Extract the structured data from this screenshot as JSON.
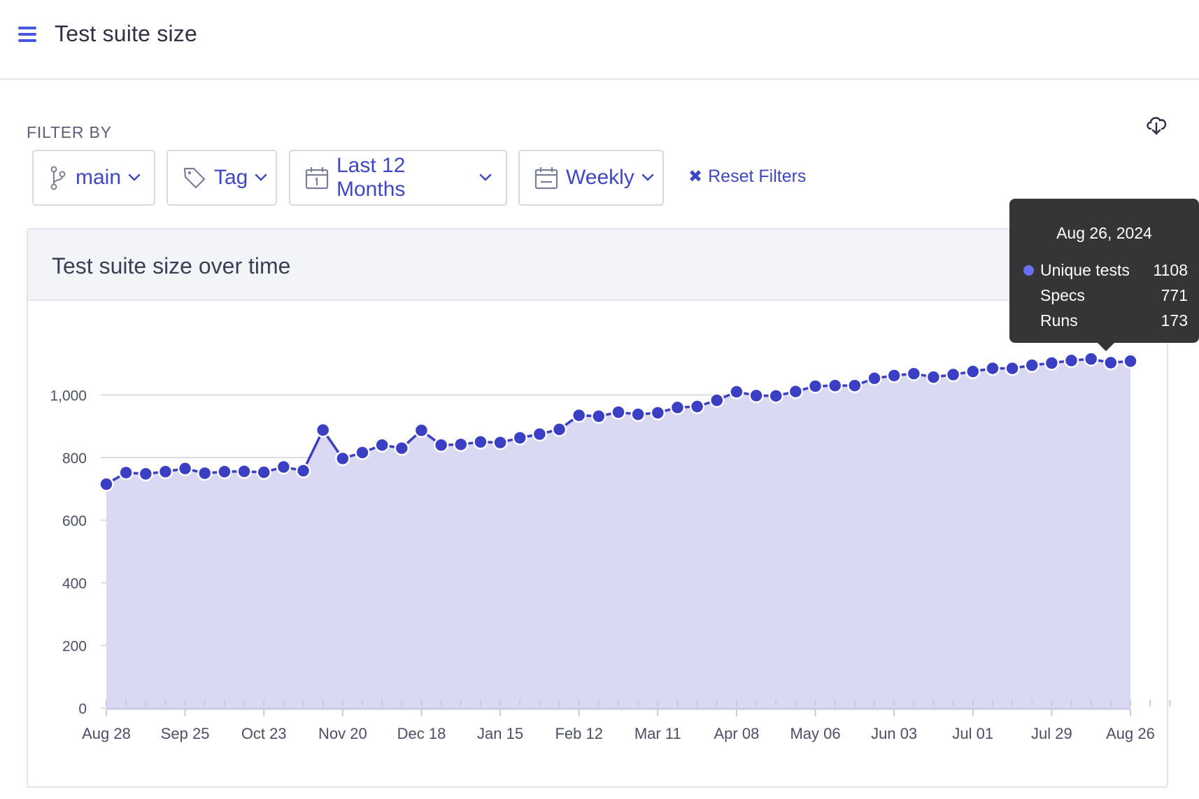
{
  "header": {
    "title": "Test suite size"
  },
  "filters": {
    "label": "FILTER BY",
    "branch": "main",
    "tag": "Tag",
    "range": "Last 12 Months",
    "period": "Weekly",
    "reset": "Reset Filters"
  },
  "card": {
    "title": "Test suite size over time"
  },
  "tooltip": {
    "date": "Aug 26, 2024",
    "rows": [
      {
        "label": "Unique tests",
        "value": "1108"
      },
      {
        "label": "Specs",
        "value": "771"
      },
      {
        "label": "Runs",
        "value": "173"
      }
    ]
  },
  "colors": {
    "accent": "#3f47c7",
    "line": "#3a3fc4",
    "area": "#d9d9f3",
    "grid": "#dadbe6"
  },
  "chart_data": {
    "type": "area",
    "title": "Test suite size over time",
    "xlabel": "",
    "ylabel": "",
    "ylim": [
      0,
      1200
    ],
    "yticks": [
      0,
      200,
      400,
      600,
      800,
      1000
    ],
    "ytick_labels": [
      "0",
      "200",
      "400",
      "600",
      "800",
      "1,000"
    ],
    "xtick_labels": [
      "Aug 28",
      "Sep 25",
      "Oct 23",
      "Nov 20",
      "Dec 18",
      "Jan 15",
      "Feb 12",
      "Mar 11",
      "Apr 08",
      "May 06",
      "Jun 03",
      "Jul 01",
      "Jul 29",
      "Aug 26"
    ],
    "series": [
      {
        "name": "Unique tests",
        "values": [
          715,
          752,
          748,
          755,
          765,
          750,
          755,
          756,
          753,
          770,
          758,
          888,
          797,
          816,
          840,
          830,
          887,
          840,
          842,
          850,
          848,
          863,
          875,
          890,
          935,
          932,
          945,
          938,
          943,
          960,
          963,
          983,
          1010,
          998,
          997,
          1011,
          1028,
          1030,
          1030,
          1053,
          1062,
          1068,
          1057,
          1065,
          1075,
          1085,
          1085,
          1095,
          1102,
          1110,
          1115,
          1103,
          1108
        ]
      }
    ]
  }
}
